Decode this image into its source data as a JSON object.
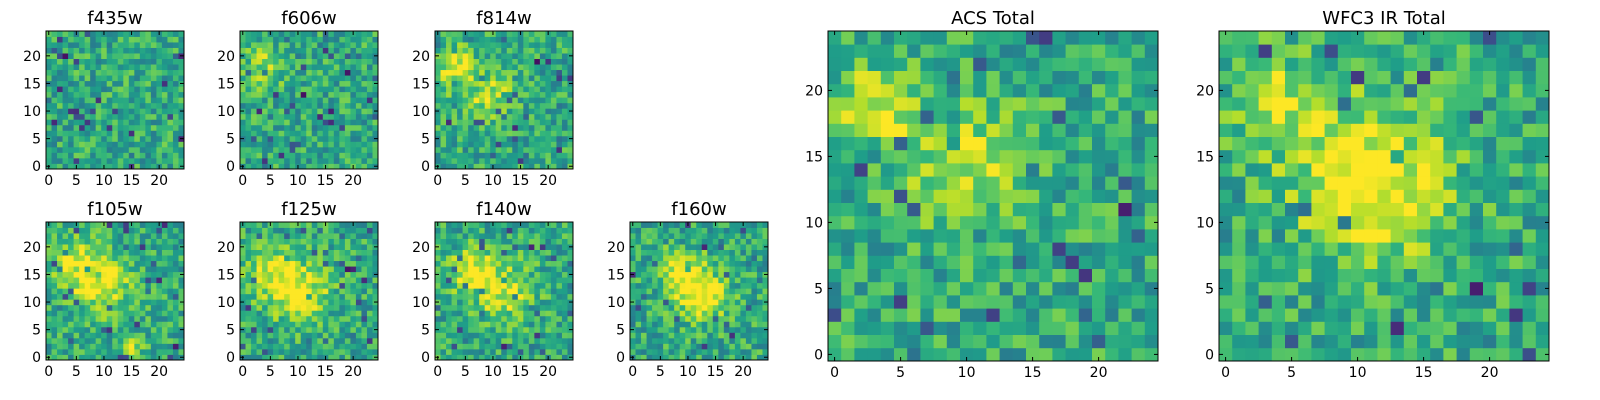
{
  "figure": {
    "title": ""
  },
  "chart_data": [
    {
      "type": "heatmap",
      "title": "f435w",
      "xlabel": "",
      "ylabel": "",
      "grid_size": 25,
      "xlim": [
        0,
        24
      ],
      "ylim": [
        0,
        24
      ],
      "xticks": [
        0,
        5,
        10,
        15,
        20
      ],
      "yticks": [
        0,
        5,
        10,
        15,
        20
      ],
      "colormap": "viridis",
      "grid": false,
      "seed": 11,
      "sources": []
    },
    {
      "type": "heatmap",
      "title": "f606w",
      "xlabel": "",
      "ylabel": "",
      "grid_size": 25,
      "xlim": [
        0,
        24
      ],
      "ylim": [
        0,
        24
      ],
      "xticks": [
        0,
        5,
        10,
        15,
        20
      ],
      "yticks": [
        0,
        5,
        10,
        15,
        20
      ],
      "colormap": "viridis",
      "grid": false,
      "seed": 23,
      "sources": [
        {
          "x": 4,
          "y": 18,
          "amp": 0.25,
          "sigma": 2.5
        }
      ]
    },
    {
      "type": "heatmap",
      "title": "f814w",
      "xlabel": "",
      "ylabel": "",
      "grid_size": 25,
      "xlim": [
        0,
        24
      ],
      "ylim": [
        0,
        24
      ],
      "xticks": [
        0,
        5,
        10,
        15,
        20
      ],
      "yticks": [
        0,
        5,
        10,
        15,
        20
      ],
      "colormap": "viridis",
      "grid": false,
      "seed": 37,
      "sources": [
        {
          "x": 3,
          "y": 18,
          "amp": 0.35,
          "sigma": 2.5
        },
        {
          "x": 9,
          "y": 13,
          "amp": 0.3,
          "sigma": 3.0
        }
      ]
    },
    {
      "type": "heatmap",
      "title": "f105w",
      "xlabel": "",
      "ylabel": "",
      "grid_size": 25,
      "xlim": [
        0,
        24
      ],
      "ylim": [
        0,
        24
      ],
      "xticks": [
        0,
        5,
        10,
        15,
        20
      ],
      "yticks": [
        0,
        5,
        10,
        15,
        20
      ],
      "colormap": "viridis",
      "grid": false,
      "seed": 41,
      "sources": [
        {
          "x": 5,
          "y": 17,
          "amp": 0.35,
          "sigma": 3.0
        },
        {
          "x": 10,
          "y": 13,
          "amp": 0.35,
          "sigma": 3.5
        },
        {
          "x": 15,
          "y": 2,
          "amp": 0.3,
          "sigma": 1.5
        }
      ]
    },
    {
      "type": "heatmap",
      "title": "f125w",
      "xlabel": "",
      "ylabel": "",
      "grid_size": 25,
      "xlim": [
        0,
        24
      ],
      "ylim": [
        0,
        24
      ],
      "xticks": [
        0,
        5,
        10,
        15,
        20
      ],
      "yticks": [
        0,
        5,
        10,
        15,
        20
      ],
      "colormap": "viridis",
      "grid": false,
      "seed": 53,
      "sources": [
        {
          "x": 6,
          "y": 15,
          "amp": 0.35,
          "sigma": 3.5
        },
        {
          "x": 11,
          "y": 11,
          "amp": 0.35,
          "sigma": 3.5
        }
      ]
    },
    {
      "type": "heatmap",
      "title": "f140w",
      "xlabel": "",
      "ylabel": "",
      "grid_size": 25,
      "xlim": [
        0,
        24
      ],
      "ylim": [
        0,
        24
      ],
      "xticks": [
        0,
        5,
        10,
        15,
        20
      ],
      "yticks": [
        0,
        5,
        10,
        15,
        20
      ],
      "colormap": "viridis",
      "grid": false,
      "seed": 67,
      "sources": [
        {
          "x": 6,
          "y": 16,
          "amp": 0.35,
          "sigma": 3.0
        },
        {
          "x": 12,
          "y": 12,
          "amp": 0.35,
          "sigma": 3.5
        }
      ]
    },
    {
      "type": "heatmap",
      "title": "f160w",
      "xlabel": "",
      "ylabel": "",
      "grid_size": 25,
      "xlim": [
        0,
        24
      ],
      "ylim": [
        0,
        24
      ],
      "xticks": [
        0,
        5,
        10,
        15,
        20
      ],
      "yticks": [
        0,
        5,
        10,
        15,
        20
      ],
      "colormap": "viridis",
      "grid": false,
      "seed": 79,
      "sources": [
        {
          "x": 9,
          "y": 15,
          "amp": 0.35,
          "sigma": 3.0
        },
        {
          "x": 13,
          "y": 11,
          "amp": 0.4,
          "sigma": 3.0
        }
      ]
    },
    {
      "type": "heatmap",
      "title": "ACS Total",
      "xlabel": "",
      "ylabel": "",
      "grid_size": 25,
      "xlim": [
        0,
        24
      ],
      "ylim": [
        0,
        24
      ],
      "xticks": [
        0,
        5,
        10,
        15,
        20
      ],
      "yticks": [
        0,
        5,
        10,
        15,
        20
      ],
      "colormap": "viridis",
      "grid": false,
      "seed": 97,
      "sources": [
        {
          "x": 3,
          "y": 19,
          "amp": 0.35,
          "sigma": 2.0
        },
        {
          "x": 10,
          "y": 14,
          "amp": 0.3,
          "sigma": 3.5
        }
      ]
    },
    {
      "type": "heatmap",
      "title": "WFC3 IR Total",
      "xlabel": "",
      "ylabel": "",
      "grid_size": 25,
      "xlim": [
        0,
        24
      ],
      "ylim": [
        0,
        24
      ],
      "xticks": [
        0,
        5,
        10,
        15,
        20
      ],
      "yticks": [
        0,
        5,
        10,
        15,
        20
      ],
      "colormap": "viridis",
      "grid": false,
      "seed": 113,
      "sources": [
        {
          "x": 4,
          "y": 19,
          "amp": 0.3,
          "sigma": 2.5
        },
        {
          "x": 11,
          "y": 13,
          "amp": 0.45,
          "sigma": 4.0
        }
      ]
    }
  ]
}
